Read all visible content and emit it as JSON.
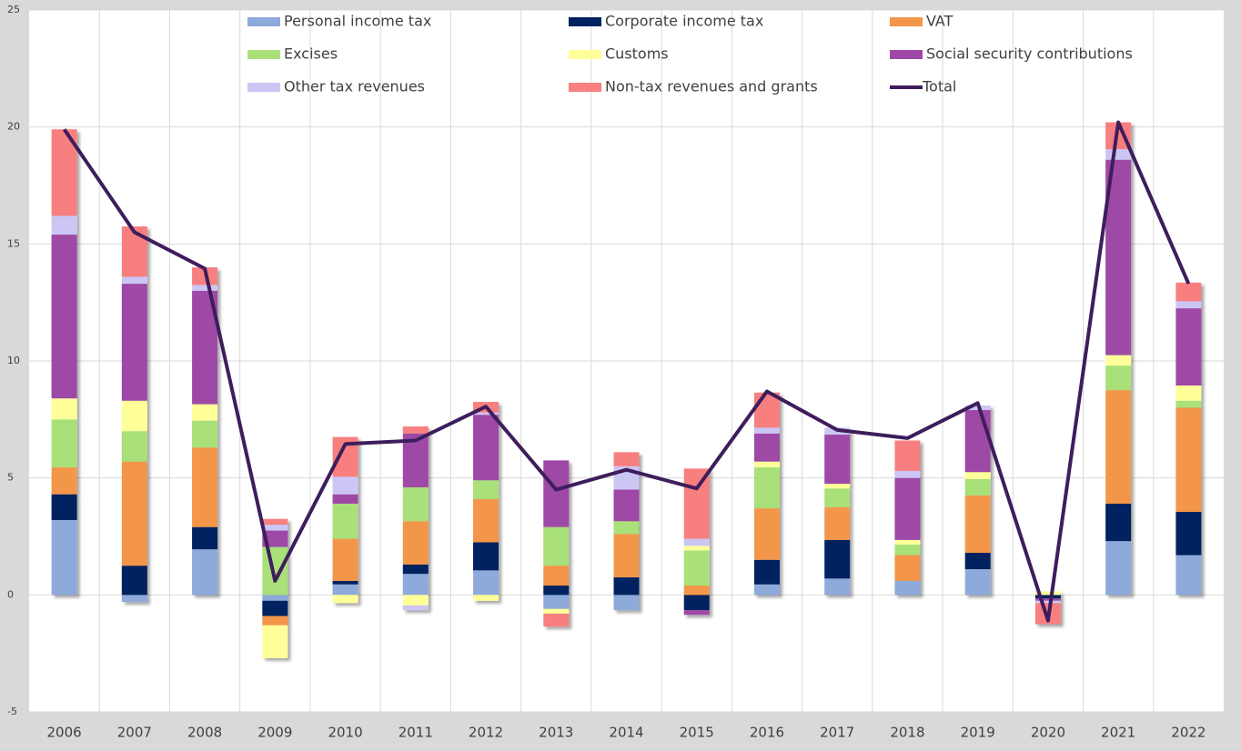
{
  "chart_data": {
    "type": "bar",
    "categories": [
      "2006",
      "2007",
      "2008",
      "2009",
      "2010",
      "2011",
      "2012",
      "2013",
      "2014",
      "2015",
      "2016",
      "2017",
      "2018",
      "2019",
      "2020",
      "2021",
      "2022"
    ],
    "stacked": true,
    "series": [
      {
        "name": "Personal income tax",
        "color": "#8eaadb",
        "values": [
          3.2,
          -0.3,
          1.95,
          -0.25,
          0.45,
          0.9,
          1.05,
          -0.6,
          -0.65,
          0,
          0.45,
          0.7,
          0.6,
          1.1,
          0,
          2.3,
          1.7
        ]
      },
      {
        "name": "Corporate income tax",
        "color": "#002060",
        "values": [
          1.1,
          1.25,
          0.95,
          -0.65,
          0.15,
          0.4,
          1.2,
          0.4,
          0.75,
          -0.65,
          1.05,
          1.65,
          0,
          0.7,
          -0.15,
          1.6,
          1.85
        ]
      },
      {
        "name": "VAT",
        "color": "#f4964a",
        "values": [
          1.15,
          4.45,
          3.4,
          -0.4,
          1.8,
          1.85,
          1.85,
          0.85,
          1.85,
          0.4,
          2.2,
          1.4,
          1.1,
          2.45,
          0,
          4.85,
          4.45
        ]
      },
      {
        "name": "Excises",
        "color": "#a9e07a",
        "values": [
          2.05,
          1.3,
          1.15,
          2.05,
          1.5,
          1.45,
          0.8,
          1.65,
          0.55,
          1.5,
          1.75,
          0.8,
          0.45,
          0.7,
          0,
          1.05,
          0.3
        ]
      },
      {
        "name": "Customs",
        "color": "#ffff99",
        "values": [
          0.9,
          1.3,
          0.7,
          -1.4,
          -0.35,
          -0.45,
          -0.25,
          -0.2,
          0,
          0.2,
          0.25,
          0.2,
          0.2,
          0.3,
          0.15,
          0.45,
          0.65
        ]
      },
      {
        "name": "Social security contributions",
        "color": "#9e48a6",
        "values": [
          7.0,
          5.0,
          4.85,
          0.7,
          0.4,
          2.3,
          2.8,
          2.85,
          1.35,
          -0.2,
          1.2,
          2.1,
          2.65,
          2.65,
          -0.1,
          8.35,
          3.3
        ]
      },
      {
        "name": "Other tax revenues",
        "color": "#ccc6f5",
        "values": [
          0.8,
          0.3,
          0.25,
          0.25,
          0.75,
          -0.2,
          0.1,
          0,
          1.0,
          0.3,
          0.25,
          0.3,
          0.3,
          0.2,
          -0.1,
          0.45,
          0.3
        ]
      },
      {
        "name": "Non-tax revenues and grants",
        "color": "#f87f7f",
        "values": [
          3.7,
          2.15,
          0.75,
          0.25,
          1.7,
          0.3,
          0.45,
          -0.55,
          0.6,
          3.0,
          1.5,
          0,
          1.3,
          0,
          -0.9,
          1.15,
          0.8
        ]
      },
      {
        "name": "Total",
        "color": "#3f1d5c",
        "type": "line",
        "values": [
          19.9,
          15.5,
          13.95,
          0.6,
          6.45,
          6.6,
          8.05,
          4.5,
          5.35,
          4.55,
          8.7,
          7.05,
          6.7,
          8.2,
          -1.1,
          20.2,
          13.3
        ]
      }
    ],
    "ylim": [
      -5,
      25
    ],
    "yticks": [
      -5,
      0,
      5,
      10,
      15,
      20,
      25
    ],
    "grid": true
  }
}
